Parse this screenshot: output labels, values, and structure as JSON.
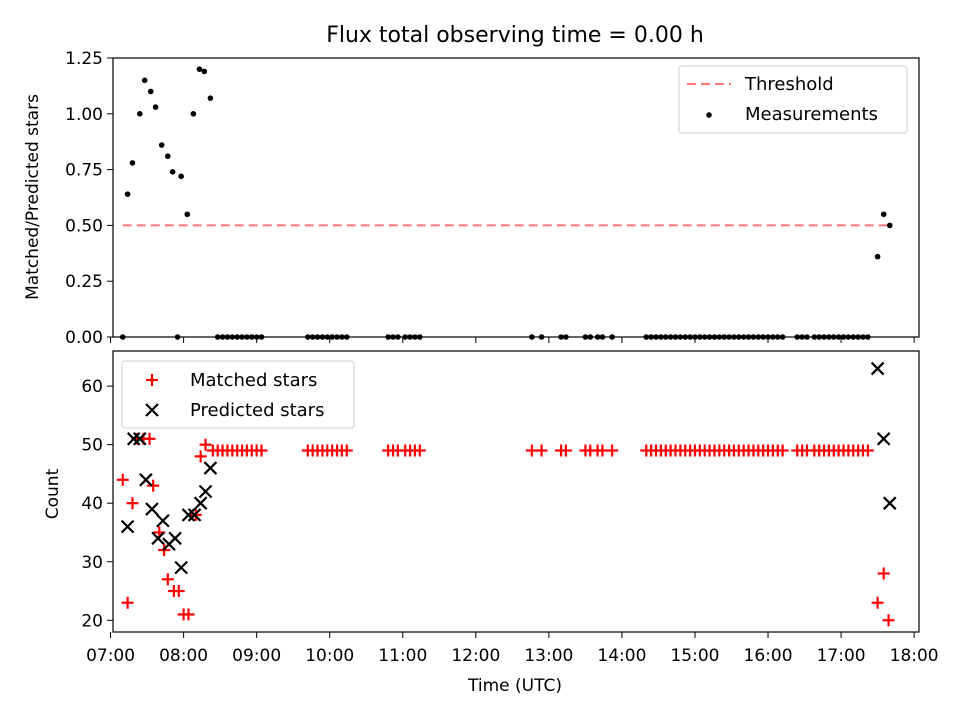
{
  "chart_data": [
    {
      "type": "scatter",
      "title": "Flux total observing time = 0.00 h",
      "xlabel": "",
      "ylabel": "Matched/Predicted stars",
      "x_unit": "time (UTC, HH:MM)",
      "xlim": [
        "07:02",
        "18:04"
      ],
      "ylim": [
        0,
        1.25
      ],
      "yticks": [
        "0.00",
        "0.25",
        "0.50",
        "0.75",
        "1.00",
        "1.25"
      ],
      "grid": false,
      "legend_position": "top-right",
      "legend": [
        "Threshold",
        "Measurements"
      ],
      "threshold": {
        "name": "Threshold",
        "value": 0.5,
        "x_range": [
          "07:10",
          "17:38"
        ],
        "style": "dashed",
        "color": "#ff7777"
      },
      "series": [
        {
          "name": "Measurements",
          "marker": "dot",
          "color": "#000000",
          "points": [
            {
              "x": "07:10",
              "y": 0.0
            },
            {
              "x": "07:14",
              "y": 0.64
            },
            {
              "x": "07:18",
              "y": 0.78
            },
            {
              "x": "07:24",
              "y": 1.0
            },
            {
              "x": "07:28",
              "y": 1.15
            },
            {
              "x": "07:33",
              "y": 1.1
            },
            {
              "x": "07:37",
              "y": 1.03
            },
            {
              "x": "07:42",
              "y": 0.86
            },
            {
              "x": "07:47",
              "y": 0.81
            },
            {
              "x": "07:51",
              "y": 0.74
            },
            {
              "x": "07:55",
              "y": 0.0
            },
            {
              "x": "07:58",
              "y": 0.72
            },
            {
              "x": "08:03",
              "y": 0.55
            },
            {
              "x": "08:08",
              "y": 1.0
            },
            {
              "x": "08:13",
              "y": 1.2
            },
            {
              "x": "08:17",
              "y": 1.19
            },
            {
              "x": "08:22",
              "y": 1.07
            },
            {
              "x": "08:28",
              "y": 0.0
            },
            {
              "x": "08:32",
              "y": 0.0
            },
            {
              "x": "08:36",
              "y": 0.0
            },
            {
              "x": "08:40",
              "y": 0.0
            },
            {
              "x": "08:44",
              "y": 0.0
            },
            {
              "x": "08:48",
              "y": 0.0
            },
            {
              "x": "08:52",
              "y": 0.0
            },
            {
              "x": "08:56",
              "y": 0.0
            },
            {
              "x": "09:00",
              "y": 0.0
            },
            {
              "x": "09:04",
              "y": 0.0
            },
            {
              "x": "09:42",
              "y": 0.0
            },
            {
              "x": "09:46",
              "y": 0.0
            },
            {
              "x": "09:50",
              "y": 0.0
            },
            {
              "x": "09:54",
              "y": 0.0
            },
            {
              "x": "09:58",
              "y": 0.0
            },
            {
              "x": "10:02",
              "y": 0.0
            },
            {
              "x": "10:06",
              "y": 0.0
            },
            {
              "x": "10:10",
              "y": 0.0
            },
            {
              "x": "10:14",
              "y": 0.0
            },
            {
              "x": "10:48",
              "y": 0.0
            },
            {
              "x": "10:52",
              "y": 0.0
            },
            {
              "x": "10:56",
              "y": 0.0
            },
            {
              "x": "11:02",
              "y": 0.0
            },
            {
              "x": "11:06",
              "y": 0.0
            },
            {
              "x": "11:10",
              "y": 0.0
            },
            {
              "x": "11:14",
              "y": 0.0
            },
            {
              "x": "12:46",
              "y": 0.0
            },
            {
              "x": "12:54",
              "y": 0.0
            },
            {
              "x": "13:10",
              "y": 0.0
            },
            {
              "x": "13:14",
              "y": 0.0
            },
            {
              "x": "13:30",
              "y": 0.0
            },
            {
              "x": "13:34",
              "y": 0.0
            },
            {
              "x": "13:40",
              "y": 0.0
            },
            {
              "x": "13:44",
              "y": 0.0
            },
            {
              "x": "13:52",
              "y": 0.0
            },
            {
              "x": "14:20",
              "y": 0.0
            },
            {
              "x": "14:24",
              "y": 0.0
            },
            {
              "x": "14:28",
              "y": 0.0
            },
            {
              "x": "14:32",
              "y": 0.0
            },
            {
              "x": "14:36",
              "y": 0.0
            },
            {
              "x": "14:40",
              "y": 0.0
            },
            {
              "x": "14:44",
              "y": 0.0
            },
            {
              "x": "14:48",
              "y": 0.0
            },
            {
              "x": "14:52",
              "y": 0.0
            },
            {
              "x": "14:56",
              "y": 0.0
            },
            {
              "x": "15:00",
              "y": 0.0
            },
            {
              "x": "15:04",
              "y": 0.0
            },
            {
              "x": "15:08",
              "y": 0.0
            },
            {
              "x": "15:12",
              "y": 0.0
            },
            {
              "x": "15:16",
              "y": 0.0
            },
            {
              "x": "15:20",
              "y": 0.0
            },
            {
              "x": "15:24",
              "y": 0.0
            },
            {
              "x": "15:28",
              "y": 0.0
            },
            {
              "x": "15:32",
              "y": 0.0
            },
            {
              "x": "15:36",
              "y": 0.0
            },
            {
              "x": "15:40",
              "y": 0.0
            },
            {
              "x": "15:44",
              "y": 0.0
            },
            {
              "x": "15:48",
              "y": 0.0
            },
            {
              "x": "15:52",
              "y": 0.0
            },
            {
              "x": "15:56",
              "y": 0.0
            },
            {
              "x": "16:00",
              "y": 0.0
            },
            {
              "x": "16:04",
              "y": 0.0
            },
            {
              "x": "16:08",
              "y": 0.0
            },
            {
              "x": "16:12",
              "y": 0.0
            },
            {
              "x": "16:24",
              "y": 0.0
            },
            {
              "x": "16:28",
              "y": 0.0
            },
            {
              "x": "16:32",
              "y": 0.0
            },
            {
              "x": "16:38",
              "y": 0.0
            },
            {
              "x": "16:42",
              "y": 0.0
            },
            {
              "x": "16:46",
              "y": 0.0
            },
            {
              "x": "16:50",
              "y": 0.0
            },
            {
              "x": "16:54",
              "y": 0.0
            },
            {
              "x": "16:58",
              "y": 0.0
            },
            {
              "x": "17:02",
              "y": 0.0
            },
            {
              "x": "17:06",
              "y": 0.0
            },
            {
              "x": "17:10",
              "y": 0.0
            },
            {
              "x": "17:14",
              "y": 0.0
            },
            {
              "x": "17:18",
              "y": 0.0
            },
            {
              "x": "17:22",
              "y": 0.0
            },
            {
              "x": "17:30",
              "y": 0.36
            },
            {
              "x": "17:35",
              "y": 0.55
            },
            {
              "x": "17:40",
              "y": 0.5
            }
          ]
        }
      ]
    },
    {
      "type": "scatter",
      "title": "",
      "xlabel": "Time (UTC)",
      "ylabel": "Count",
      "x_unit": "time (UTC, HH:MM)",
      "xlim": [
        "07:02",
        "18:04"
      ],
      "ylim": [
        18,
        66
      ],
      "xticks": [
        "07:00",
        "08:00",
        "09:00",
        "10:00",
        "11:00",
        "12:00",
        "13:00",
        "14:00",
        "15:00",
        "16:00",
        "17:00",
        "18:00"
      ],
      "yticks": [
        "20",
        "30",
        "40",
        "50",
        "60"
      ],
      "grid": false,
      "legend_position": "top-left",
      "legend": [
        "Matched stars",
        "Predicted stars"
      ],
      "series": [
        {
          "name": "Matched stars",
          "marker": "plus",
          "color": "#ff0000",
          "points": [
            {
              "x": "07:10",
              "y": 44
            },
            {
              "x": "07:14",
              "y": 23
            },
            {
              "x": "07:18",
              "y": 40
            },
            {
              "x": "07:22",
              "y": 51
            },
            {
              "x": "07:27",
              "y": 51
            },
            {
              "x": "07:32",
              "y": 51
            },
            {
              "x": "07:35",
              "y": 43
            },
            {
              "x": "07:40",
              "y": 35
            },
            {
              "x": "07:44",
              "y": 32
            },
            {
              "x": "07:47",
              "y": 27
            },
            {
              "x": "07:52",
              "y": 25
            },
            {
              "x": "07:56",
              "y": 25
            },
            {
              "x": "08:00",
              "y": 21
            },
            {
              "x": "08:04",
              "y": 21
            },
            {
              "x": "08:10",
              "y": 38
            },
            {
              "x": "08:14",
              "y": 48
            },
            {
              "x": "08:18",
              "y": 50
            },
            {
              "x": "08:24",
              "y": 49
            },
            {
              "x": "08:28",
              "y": 49
            },
            {
              "x": "08:32",
              "y": 49
            },
            {
              "x": "08:36",
              "y": 49
            },
            {
              "x": "08:40",
              "y": 49
            },
            {
              "x": "08:44",
              "y": 49
            },
            {
              "x": "08:48",
              "y": 49
            },
            {
              "x": "08:52",
              "y": 49
            },
            {
              "x": "08:56",
              "y": 49
            },
            {
              "x": "09:00",
              "y": 49
            },
            {
              "x": "09:04",
              "y": 49
            },
            {
              "x": "09:42",
              "y": 49
            },
            {
              "x": "09:46",
              "y": 49
            },
            {
              "x": "09:50",
              "y": 49
            },
            {
              "x": "09:54",
              "y": 49
            },
            {
              "x": "09:58",
              "y": 49
            },
            {
              "x": "10:02",
              "y": 49
            },
            {
              "x": "10:06",
              "y": 49
            },
            {
              "x": "10:10",
              "y": 49
            },
            {
              "x": "10:14",
              "y": 49
            },
            {
              "x": "10:48",
              "y": 49
            },
            {
              "x": "10:52",
              "y": 49
            },
            {
              "x": "10:56",
              "y": 49
            },
            {
              "x": "11:02",
              "y": 49
            },
            {
              "x": "11:06",
              "y": 49
            },
            {
              "x": "11:10",
              "y": 49
            },
            {
              "x": "11:14",
              "y": 49
            },
            {
              "x": "12:46",
              "y": 49
            },
            {
              "x": "12:54",
              "y": 49
            },
            {
              "x": "13:10",
              "y": 49
            },
            {
              "x": "13:14",
              "y": 49
            },
            {
              "x": "13:30",
              "y": 49
            },
            {
              "x": "13:34",
              "y": 49
            },
            {
              "x": "13:40",
              "y": 49
            },
            {
              "x": "13:44",
              "y": 49
            },
            {
              "x": "13:52",
              "y": 49
            },
            {
              "x": "14:20",
              "y": 49
            },
            {
              "x": "14:24",
              "y": 49
            },
            {
              "x": "14:28",
              "y": 49
            },
            {
              "x": "14:32",
              "y": 49
            },
            {
              "x": "14:36",
              "y": 49
            },
            {
              "x": "14:40",
              "y": 49
            },
            {
              "x": "14:44",
              "y": 49
            },
            {
              "x": "14:48",
              "y": 49
            },
            {
              "x": "14:52",
              "y": 49
            },
            {
              "x": "14:56",
              "y": 49
            },
            {
              "x": "15:00",
              "y": 49
            },
            {
              "x": "15:04",
              "y": 49
            },
            {
              "x": "15:08",
              "y": 49
            },
            {
              "x": "15:12",
              "y": 49
            },
            {
              "x": "15:16",
              "y": 49
            },
            {
              "x": "15:20",
              "y": 49
            },
            {
              "x": "15:24",
              "y": 49
            },
            {
              "x": "15:28",
              "y": 49
            },
            {
              "x": "15:32",
              "y": 49
            },
            {
              "x": "15:36",
              "y": 49
            },
            {
              "x": "15:40",
              "y": 49
            },
            {
              "x": "15:44",
              "y": 49
            },
            {
              "x": "15:48",
              "y": 49
            },
            {
              "x": "15:52",
              "y": 49
            },
            {
              "x": "15:56",
              "y": 49
            },
            {
              "x": "16:00",
              "y": 49
            },
            {
              "x": "16:04",
              "y": 49
            },
            {
              "x": "16:08",
              "y": 49
            },
            {
              "x": "16:12",
              "y": 49
            },
            {
              "x": "16:24",
              "y": 49
            },
            {
              "x": "16:28",
              "y": 49
            },
            {
              "x": "16:32",
              "y": 49
            },
            {
              "x": "16:38",
              "y": 49
            },
            {
              "x": "16:42",
              "y": 49
            },
            {
              "x": "16:46",
              "y": 49
            },
            {
              "x": "16:50",
              "y": 49
            },
            {
              "x": "16:54",
              "y": 49
            },
            {
              "x": "16:58",
              "y": 49
            },
            {
              "x": "17:02",
              "y": 49
            },
            {
              "x": "17:06",
              "y": 49
            },
            {
              "x": "17:10",
              "y": 49
            },
            {
              "x": "17:14",
              "y": 49
            },
            {
              "x": "17:18",
              "y": 49
            },
            {
              "x": "17:22",
              "y": 49
            },
            {
              "x": "17:30",
              "y": 23
            },
            {
              "x": "17:35",
              "y": 28
            },
            {
              "x": "17:39",
              "y": 20
            }
          ]
        },
        {
          "name": "Predicted stars",
          "marker": "x",
          "color": "#000000",
          "points": [
            {
              "x": "07:14",
              "y": 36
            },
            {
              "x": "07:19",
              "y": 51
            },
            {
              "x": "07:24",
              "y": 51
            },
            {
              "x": "07:29",
              "y": 44
            },
            {
              "x": "07:34",
              "y": 39
            },
            {
              "x": "07:39",
              "y": 34
            },
            {
              "x": "07:43",
              "y": 37
            },
            {
              "x": "07:48",
              "y": 33
            },
            {
              "x": "07:53",
              "y": 34
            },
            {
              "x": "07:58",
              "y": 29
            },
            {
              "x": "08:04",
              "y": 38
            },
            {
              "x": "08:09",
              "y": 38
            },
            {
              "x": "08:14",
              "y": 40
            },
            {
              "x": "08:18",
              "y": 42
            },
            {
              "x": "08:22",
              "y": 46
            },
            {
              "x": "17:30",
              "y": 63
            },
            {
              "x": "17:35",
              "y": 51
            },
            {
              "x": "17:40",
              "y": 40
            }
          ]
        }
      ]
    }
  ]
}
